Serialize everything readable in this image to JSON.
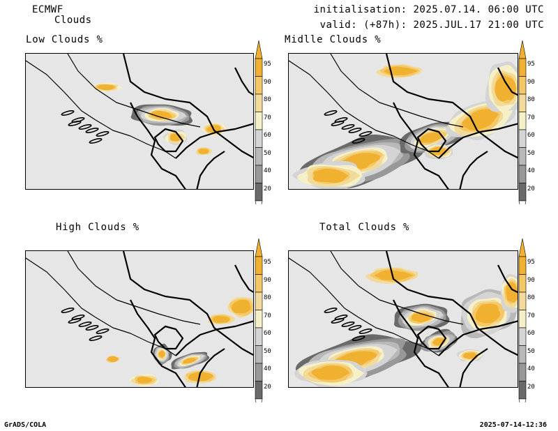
{
  "header": {
    "model": "ECMWF",
    "product": "Clouds",
    "init": "initialisation: 2025.07.14. 06:00 UTC",
    "valid": "valid: (+87h): 2025.JUL.17 21:00 UTC"
  },
  "panels": [
    {
      "title": "Low Clouds %"
    },
    {
      "title": "Midlle Clouds %"
    },
    {
      "title": "High Clouds %"
    },
    {
      "title": "Total Clouds %"
    }
  ],
  "colorbar": {
    "levels": [
      "95",
      "90",
      "80",
      "70",
      "60",
      "50",
      "40",
      "20"
    ],
    "colors": {
      "c95": "#f0b030",
      "c90": "#f4c866",
      "c80": "#f2da9a",
      "c70": "#f6f0c8",
      "c60": "#d4d4d4",
      "c50": "#b8b8b8",
      "c40": "#989898",
      "c20": "#6a6a6a",
      "bg": "#e6e6e6"
    }
  },
  "footer": {
    "left": "GrADS/COLA",
    "right": "2025-07-14-12:36"
  }
}
